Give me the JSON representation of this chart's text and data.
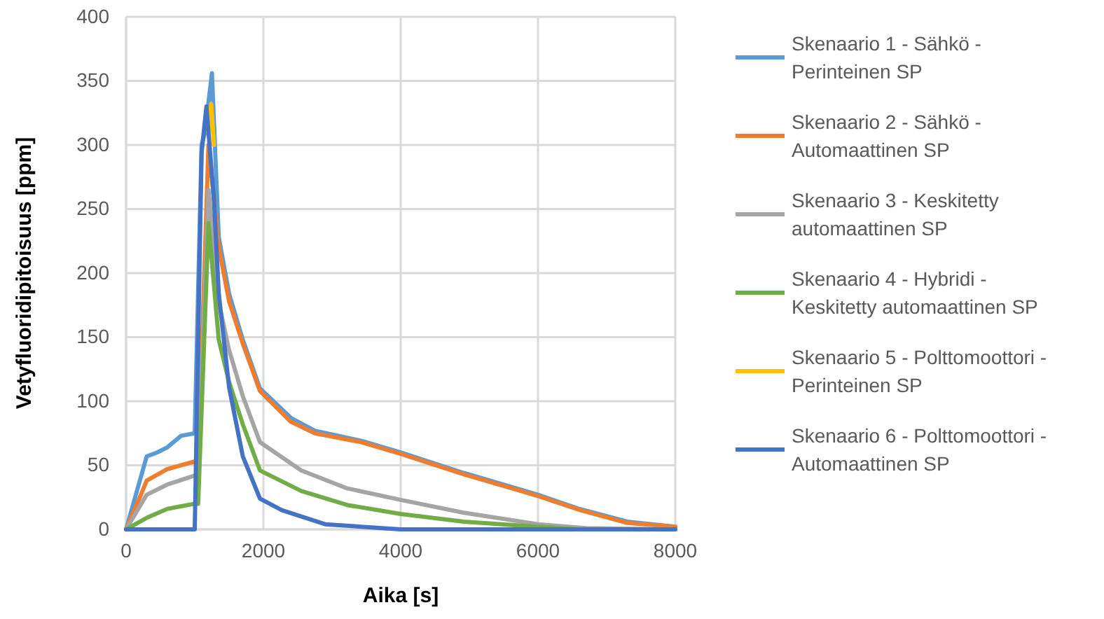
{
  "chart_data": {
    "type": "line",
    "xlabel": "Aika [s]",
    "ylabel": "Vetyfluoridipitoisuus [ppm]",
    "xlim": [
      0,
      8000
    ],
    "xticks": [
      0,
      2000,
      4000,
      6000,
      8000
    ],
    "ylim": [
      0,
      400
    ],
    "yticks": [
      0,
      50,
      100,
      150,
      200,
      250,
      300,
      350,
      400
    ],
    "grid": true,
    "legend": "right",
    "marker": "none",
    "line_style": "solid",
    "series": [
      {
        "name": "Skenaario 1 - Sähkö - Perinteinen SP",
        "color": "#5b9bd5",
        "x": [
          0,
          200,
          300,
          450,
          600,
          800,
          1000,
          1100,
          1150,
          1250,
          1350,
          1500,
          1700,
          1950,
          2400,
          2750,
          3430,
          4000,
          4920,
          6000,
          6600,
          7300,
          8000
        ],
        "values": [
          0,
          38,
          57,
          60,
          64,
          73,
          75,
          300,
          310,
          356,
          228,
          184,
          148,
          110,
          87,
          77,
          69,
          60,
          44,
          27,
          16,
          6,
          2
        ]
      },
      {
        "name": "Skenaario 2 - Sähkö - Automaattinen SP",
        "color": "#ed7d31",
        "x": [
          0,
          200,
          300,
          600,
          1000,
          1050,
          1200,
          1350,
          1500,
          1700,
          1950,
          2400,
          2750,
          3430,
          4000,
          4920,
          6000,
          6620,
          7300,
          8000
        ],
        "values": [
          0,
          25,
          38,
          47,
          53,
          53,
          300,
          220,
          178,
          145,
          108,
          84,
          75,
          68,
          59,
          43,
          26,
          15,
          5,
          2
        ]
      },
      {
        "name": "Skenaario 3 - Keskitetty automaattinen SP",
        "color": "#a5a5a5",
        "x": [
          0,
          300,
          600,
          1000,
          1050,
          1200,
          1350,
          1500,
          1700,
          1950,
          2550,
          3220,
          4000,
          4920,
          6000,
          6700,
          8000
        ],
        "values": [
          0,
          27,
          35,
          42,
          42,
          265,
          177,
          140,
          104,
          68,
          46,
          32,
          23,
          13,
          4,
          1,
          0
        ]
      },
      {
        "name": "Skenaario 4 - Hybridi - Keskitetty automaattinen SP",
        "color": "#70ad47",
        "x": [
          0,
          300,
          600,
          1000,
          1050,
          1200,
          1350,
          1500,
          1700,
          1950,
          2550,
          3220,
          4000,
          4920,
          6000,
          6600,
          8000
        ],
        "values": [
          0,
          9,
          16,
          20,
          20,
          239,
          148,
          115,
          82,
          46,
          30,
          19,
          12,
          6,
          2,
          0,
          0
        ]
      },
      {
        "name": "Skenaario 5 - Polttomoottori - Perinteinen SP",
        "color": "#ffc000",
        "x": [
          1200,
          1240,
          1280
        ],
        "values": [
          310,
          332,
          300
        ]
      },
      {
        "name": "Skenaario 6 - Polttomoottori - Automaattinen SP",
        "color": "#4472c4",
        "x": [
          0,
          1000,
          1100,
          1170,
          1280,
          1350,
          1500,
          1700,
          1950,
          2270,
          2900,
          4000,
          8000
        ],
        "values": [
          0,
          0,
          294,
          330,
          257,
          184,
          111,
          57,
          24,
          15,
          4,
          0,
          0
        ]
      }
    ]
  }
}
